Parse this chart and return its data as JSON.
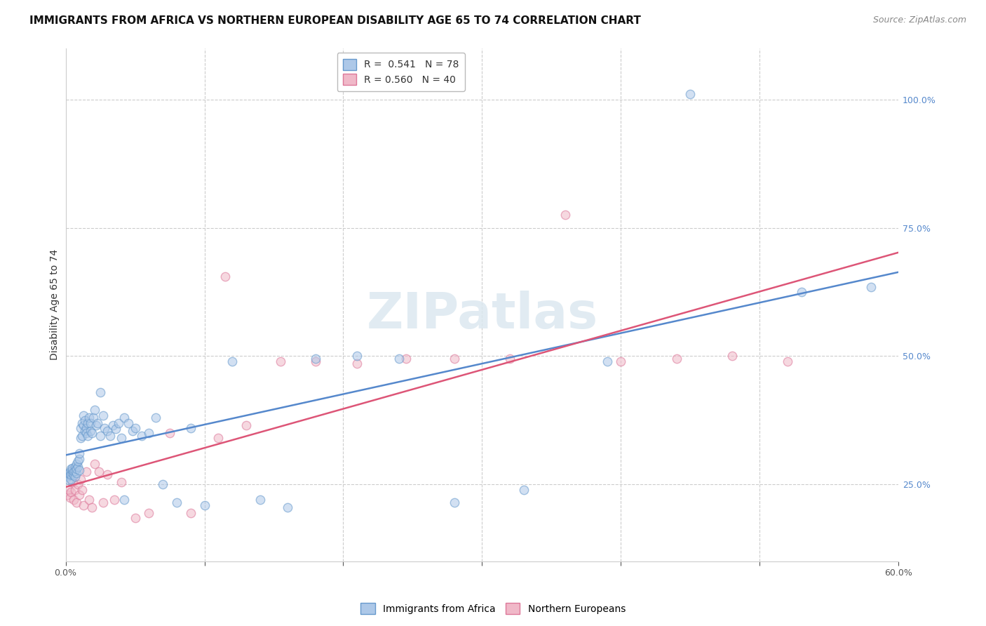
{
  "title": "IMMIGRANTS FROM AFRICA VS NORTHERN EUROPEAN DISABILITY AGE 65 TO 74 CORRELATION CHART",
  "source": "Source: ZipAtlas.com",
  "ylabel": "Disability Age 65 to 74",
  "xlim": [
    0.0,
    0.6
  ],
  "ylim": [
    0.1,
    1.1
  ],
  "africa_color": "#adc8e8",
  "africa_edge_color": "#6699cc",
  "northern_eu_color": "#f0b8c8",
  "northern_eu_edge_color": "#dd7799",
  "line_africa_color": "#5588cc",
  "line_northern_eu_color": "#dd5577",
  "R_africa": 0.541,
  "N_africa": 78,
  "R_northern_eu": 0.56,
  "N_northern_eu": 40,
  "legend_africa_label": "Immigrants from Africa",
  "legend_northern_eu_label": "Northern Europeans",
  "watermark": "ZIPatlas",
  "africa_x": [
    0.001,
    0.002,
    0.002,
    0.003,
    0.003,
    0.004,
    0.004,
    0.004,
    0.005,
    0.005,
    0.005,
    0.006,
    0.006,
    0.007,
    0.007,
    0.007,
    0.008,
    0.008,
    0.008,
    0.009,
    0.009,
    0.01,
    0.01,
    0.01,
    0.011,
    0.011,
    0.012,
    0.012,
    0.013,
    0.013,
    0.014,
    0.014,
    0.015,
    0.015,
    0.016,
    0.016,
    0.017,
    0.018,
    0.018,
    0.019,
    0.02,
    0.021,
    0.022,
    0.023,
    0.025,
    0.027,
    0.028,
    0.03,
    0.032,
    0.034,
    0.036,
    0.038,
    0.04,
    0.042,
    0.045,
    0.048,
    0.05,
    0.055,
    0.06,
    0.065,
    0.07,
    0.08,
    0.09,
    0.1,
    0.12,
    0.14,
    0.16,
    0.18,
    0.21,
    0.24,
    0.28,
    0.33,
    0.39,
    0.45,
    0.53,
    0.58,
    0.042,
    0.025
  ],
  "africa_y": [
    0.265,
    0.258,
    0.272,
    0.268,
    0.275,
    0.26,
    0.27,
    0.28,
    0.272,
    0.278,
    0.282,
    0.268,
    0.275,
    0.265,
    0.285,
    0.277,
    0.272,
    0.29,
    0.28,
    0.285,
    0.295,
    0.3,
    0.31,
    0.278,
    0.34,
    0.36,
    0.345,
    0.37,
    0.365,
    0.385,
    0.355,
    0.375,
    0.36,
    0.35,
    0.37,
    0.345,
    0.38,
    0.355,
    0.37,
    0.35,
    0.38,
    0.395,
    0.365,
    0.37,
    0.345,
    0.385,
    0.36,
    0.355,
    0.345,
    0.365,
    0.358,
    0.37,
    0.34,
    0.38,
    0.37,
    0.355,
    0.36,
    0.345,
    0.35,
    0.38,
    0.25,
    0.215,
    0.36,
    0.21,
    0.49,
    0.22,
    0.205,
    0.495,
    0.5,
    0.495,
    0.215,
    0.24,
    0.49,
    1.01,
    0.625,
    0.635,
    0.22,
    0.43
  ],
  "northern_eu_x": [
    0.001,
    0.002,
    0.003,
    0.004,
    0.005,
    0.006,
    0.007,
    0.008,
    0.009,
    0.01,
    0.011,
    0.012,
    0.013,
    0.015,
    0.017,
    0.019,
    0.021,
    0.024,
    0.027,
    0.03,
    0.035,
    0.04,
    0.05,
    0.06,
    0.075,
    0.09,
    0.11,
    0.13,
    0.155,
    0.18,
    0.21,
    0.245,
    0.28,
    0.32,
    0.36,
    0.4,
    0.44,
    0.48,
    0.52,
    0.115
  ],
  "northern_eu_y": [
    0.23,
    0.24,
    0.225,
    0.235,
    0.255,
    0.22,
    0.24,
    0.215,
    0.25,
    0.23,
    0.26,
    0.24,
    0.21,
    0.275,
    0.22,
    0.205,
    0.29,
    0.275,
    0.215,
    0.27,
    0.22,
    0.255,
    0.185,
    0.195,
    0.35,
    0.195,
    0.34,
    0.365,
    0.49,
    0.49,
    0.485,
    0.495,
    0.495,
    0.495,
    0.775,
    0.49,
    0.495,
    0.5,
    0.49,
    0.655
  ],
  "marker_size": 80,
  "alpha": 0.55,
  "title_fontsize": 11,
  "axis_label_fontsize": 10,
  "tick_fontsize": 9,
  "legend_fontsize": 10,
  "source_fontsize": 9,
  "hlines": [
    0.25,
    0.5,
    0.75,
    1.0
  ],
  "vlines": [
    0.1,
    0.2,
    0.3,
    0.4,
    0.5
  ]
}
